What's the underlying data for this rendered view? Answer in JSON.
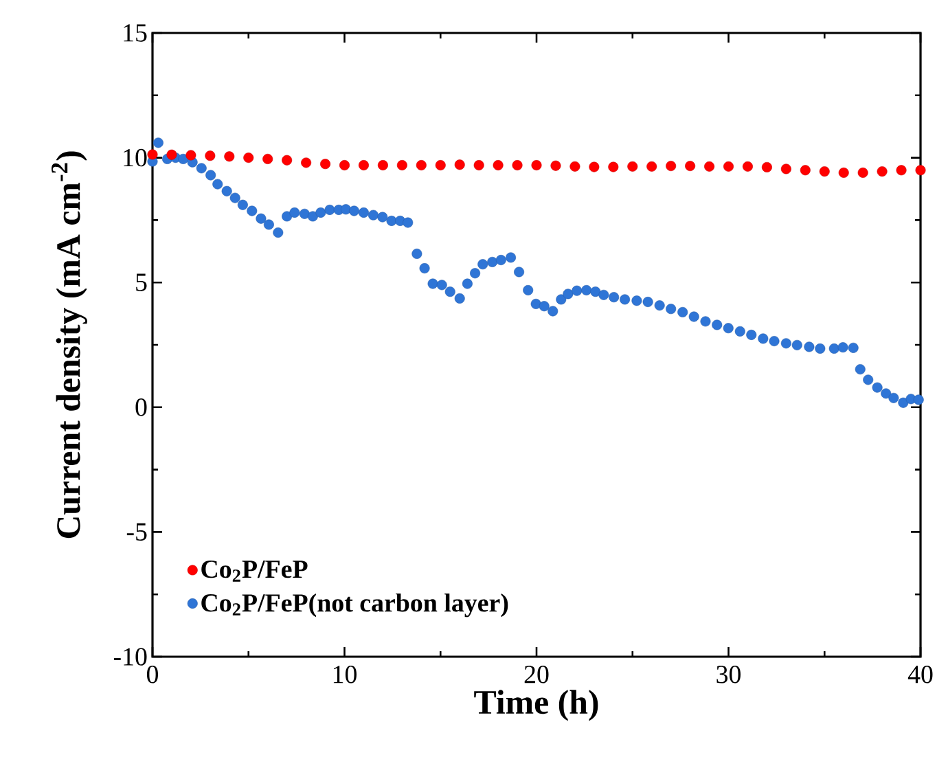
{
  "chart_data": {
    "type": "scatter",
    "xlabel": "Time (h)",
    "ylabel": "Current density (mA cm$^{-2}$)",
    "xlim": [
      0,
      40
    ],
    "ylim": [
      -10,
      15
    ],
    "xticks": [
      0,
      10,
      20,
      30,
      40
    ],
    "yticks": [
      -10,
      -5,
      0,
      5,
      10,
      15
    ],
    "grid": false,
    "legend": "bottom left",
    "marker": "circle",
    "series": [
      {
        "name": "Co$_{2}$P/FeP",
        "color": "#ff0000",
        "x": [
          0,
          1,
          2,
          3,
          4,
          5,
          6,
          7,
          8,
          9,
          10,
          11,
          12,
          13,
          14,
          15,
          16,
          17,
          18,
          19,
          20,
          21,
          22,
          23,
          24,
          25,
          26,
          27,
          28,
          29,
          30,
          31,
          32,
          33,
          34,
          35,
          36,
          37,
          38,
          39,
          40
        ],
        "values": [
          10.13,
          10.12,
          10.1,
          10.08,
          10.05,
          10.0,
          9.95,
          9.9,
          9.8,
          9.75,
          9.7,
          9.7,
          9.7,
          9.7,
          9.7,
          9.7,
          9.72,
          9.7,
          9.7,
          9.7,
          9.7,
          9.68,
          9.65,
          9.63,
          9.63,
          9.65,
          9.65,
          9.67,
          9.67,
          9.65,
          9.65,
          9.65,
          9.62,
          9.55,
          9.5,
          9.45,
          9.4,
          9.4,
          9.45,
          9.5,
          9.5
        ]
      },
      {
        "name": "Co$_{2}$P/FeP(not carbon layer)",
        "color": "#2f75d6",
        "x": [
          0,
          0.3,
          0.77,
          1.2,
          1.6,
          2.08,
          2.55,
          3.03,
          3.39,
          3.87,
          4.3,
          4.7,
          5.18,
          5.65,
          6.06,
          6.54,
          7.0,
          7.4,
          7.92,
          8.35,
          8.76,
          9.23,
          9.7,
          10.07,
          10.5,
          11.0,
          11.5,
          11.98,
          12.45,
          12.9,
          13.3,
          13.77,
          14.17,
          14.6,
          15.07,
          15.5,
          16.0,
          16.4,
          16.8,
          17.2,
          17.7,
          18.15,
          18.66,
          19.09,
          19.56,
          19.97,
          20.4,
          20.85,
          21.28,
          21.64,
          22.1,
          22.6,
          23.07,
          23.5,
          24.03,
          24.6,
          25.22,
          25.8,
          26.41,
          27.0,
          27.61,
          28.2,
          28.8,
          29.4,
          29.99,
          30.6,
          31.19,
          31.8,
          32.38,
          33.0,
          33.57,
          34.2,
          34.77,
          35.5,
          35.96,
          36.5,
          36.86,
          37.27,
          37.75,
          38.2,
          38.6,
          39.1,
          39.5,
          39.9
        ],
        "values": [
          9.85,
          10.6,
          9.95,
          10.0,
          9.95,
          9.82,
          9.58,
          9.3,
          8.94,
          8.66,
          8.39,
          8.11,
          7.87,
          7.56,
          7.32,
          7.0,
          7.65,
          7.8,
          7.75,
          7.65,
          7.8,
          7.91,
          7.91,
          7.93,
          7.87,
          7.8,
          7.7,
          7.62,
          7.47,
          7.47,
          7.4,
          6.15,
          5.57,
          4.95,
          4.9,
          4.63,
          4.36,
          4.95,
          5.37,
          5.73,
          5.82,
          5.9,
          6.0,
          5.42,
          4.69,
          4.14,
          4.05,
          3.85,
          4.32,
          4.54,
          4.67,
          4.69,
          4.63,
          4.5,
          4.41,
          4.32,
          4.27,
          4.22,
          4.08,
          3.94,
          3.81,
          3.63,
          3.44,
          3.3,
          3.17,
          3.04,
          2.9,
          2.75,
          2.65,
          2.56,
          2.49,
          2.42,
          2.35,
          2.35,
          2.4,
          2.38,
          1.52,
          1.1,
          0.79,
          0.55,
          0.37,
          0.18,
          0.33,
          0.3
        ]
      }
    ]
  }
}
